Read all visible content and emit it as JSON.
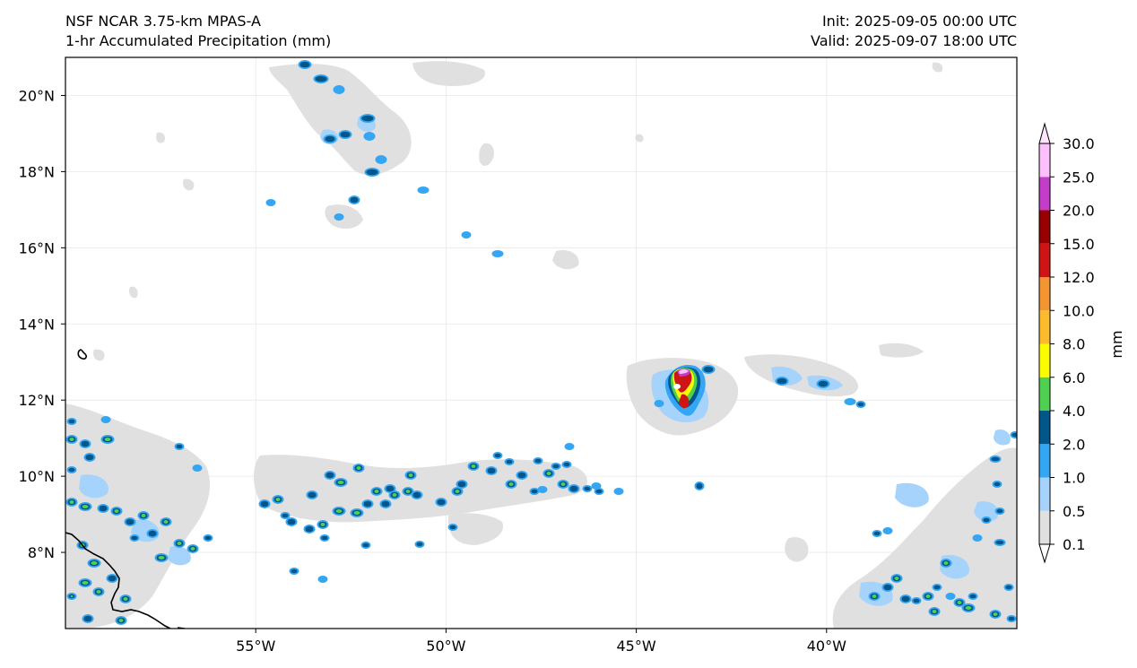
{
  "header": {
    "model": "NSF NCAR 3.75-km MPAS-A",
    "field": "1-hr Accumulated Precipitation (mm)",
    "init": "Init: 2025-09-05 00:00 UTC",
    "valid": "Valid: 2025-09-07 18:00 UTC"
  },
  "map": {
    "lon_range": [
      -60,
      -35
    ],
    "lat_range": [
      6,
      21
    ],
    "lon_ticks": [
      {
        "value": -55,
        "label": "55°W"
      },
      {
        "value": -50,
        "label": "50°W"
      },
      {
        "value": -45,
        "label": "45°W"
      },
      {
        "value": -40,
        "label": "40°W"
      }
    ],
    "lat_ticks": [
      {
        "value": 8,
        "label": "8°N"
      },
      {
        "value": 10,
        "label": "10°N"
      },
      {
        "value": 12,
        "label": "12°N"
      },
      {
        "value": 14,
        "label": "14°N"
      },
      {
        "value": 16,
        "label": "16°N"
      },
      {
        "value": 18,
        "label": "18°N"
      },
      {
        "value": 20,
        "label": "20°N"
      }
    ],
    "gridlines": true
  },
  "colorbar": {
    "unit_label": "mm",
    "extend": "both",
    "levels": [
      "0.1",
      "0.5",
      "1.0",
      "2.0",
      "4.0",
      "6.0",
      "8.0",
      "10.0",
      "12.0",
      "15.0",
      "20.0",
      "25.0",
      "30.0"
    ],
    "colors": [
      "#e0e0e0",
      "#a6d3fb",
      "#35a6f3",
      "#02568a",
      "#50d050",
      "#fcfc00",
      "#fcba2e",
      "#f39632",
      "#ce1414",
      "#960000",
      "#c23dc8",
      "#fdc0fd"
    ],
    "under_color": "#ffffff",
    "over_color": "#fde6fd"
  }
}
